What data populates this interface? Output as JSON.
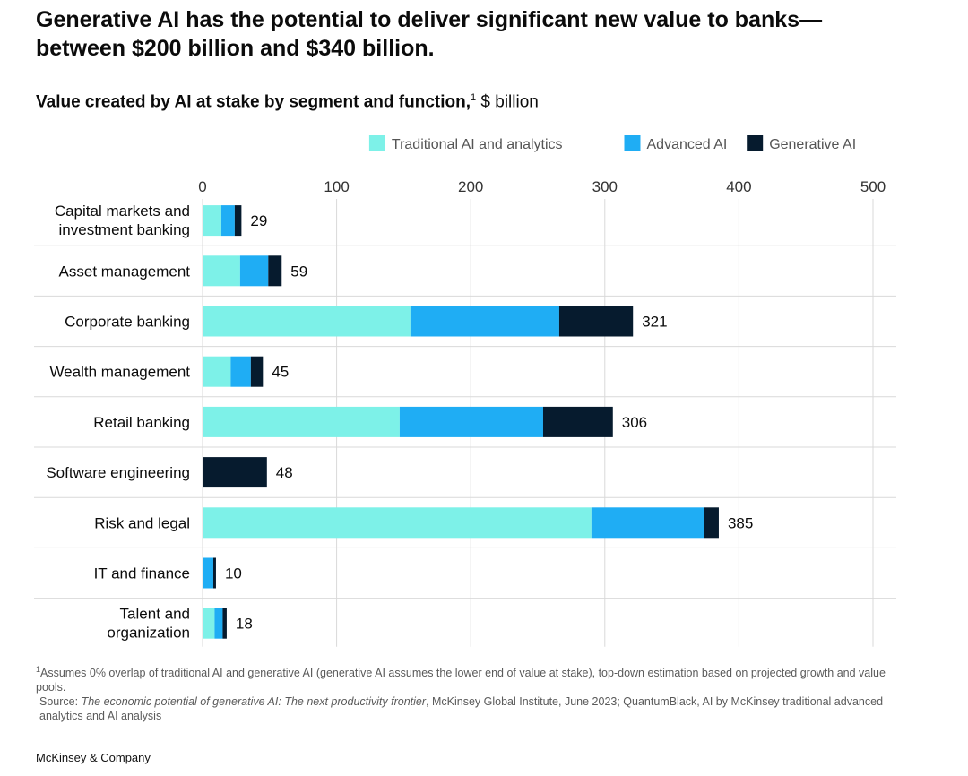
{
  "title_line1": "Generative AI has the potential to deliver significant new value to banks—",
  "title_line2": "between $200 billion and $340 billion.",
  "footnotes": {
    "note1_marker": "1",
    "note1_text": "Assumes 0% overlap of traditional AI and generative AI (generative AI assumes the lower end of value at stake), top-down estimation based on projected growth and value pools.",
    "source_label": "Source: ",
    "source_title": "The economic potential of generative AI: The next productivity frontier",
    "source_rest": ", McKinsey Global Institute, June 2023; QuantumBlack, AI by McKinsey traditional advanced analytics and AI analysis"
  },
  "brand": "McKinsey & Company",
  "colors": {
    "traditional": "#7df1e8",
    "advanced": "#1fadf4",
    "generative": "#061b2e",
    "grid": "#d9d9d9",
    "text": "#0b0b0b"
  },
  "chart_data": {
    "type": "bar",
    "orientation": "horizontal",
    "stacked": true,
    "title": "Value created by AI at stake by segment and function,",
    "title_footnote_marker": "1",
    "unit": "$ billion",
    "legend_position": "top-right",
    "xlim": [
      0,
      500
    ],
    "x_ticks": [
      0,
      100,
      200,
      300,
      400,
      500
    ],
    "x_tick_labels": [
      "0",
      "100",
      "200",
      "300",
      "400",
      "500"
    ],
    "categories": [
      [
        "Capital markets and",
        "investment banking"
      ],
      [
        "Asset management"
      ],
      [
        "Corporate banking"
      ],
      [
        "Wealth management"
      ],
      [
        "Retail banking"
      ],
      [
        "Software engineering"
      ],
      [
        "Risk and legal"
      ],
      [
        "IT and finance"
      ],
      [
        "Talent and",
        "organization"
      ]
    ],
    "series": [
      {
        "name": "Traditional AI and analytics",
        "key": "traditional",
        "values": [
          14,
          28,
          155,
          21,
          147,
          0,
          290,
          0,
          9
        ]
      },
      {
        "name": "Advanced AI",
        "key": "advanced",
        "values": [
          10,
          21,
          111,
          15,
          107,
          0,
          84,
          8,
          6
        ]
      },
      {
        "name": "Generative  AI",
        "key": "generative",
        "values": [
          5,
          10,
          55,
          9,
          52,
          48,
          11,
          2,
          3
        ]
      }
    ],
    "totals": [
      29,
      59,
      321,
      45,
      306,
      48,
      385,
      10,
      18
    ],
    "total_labels": [
      "29",
      "59",
      "321",
      "45",
      "306",
      "48",
      "385",
      "10",
      "18"
    ]
  }
}
